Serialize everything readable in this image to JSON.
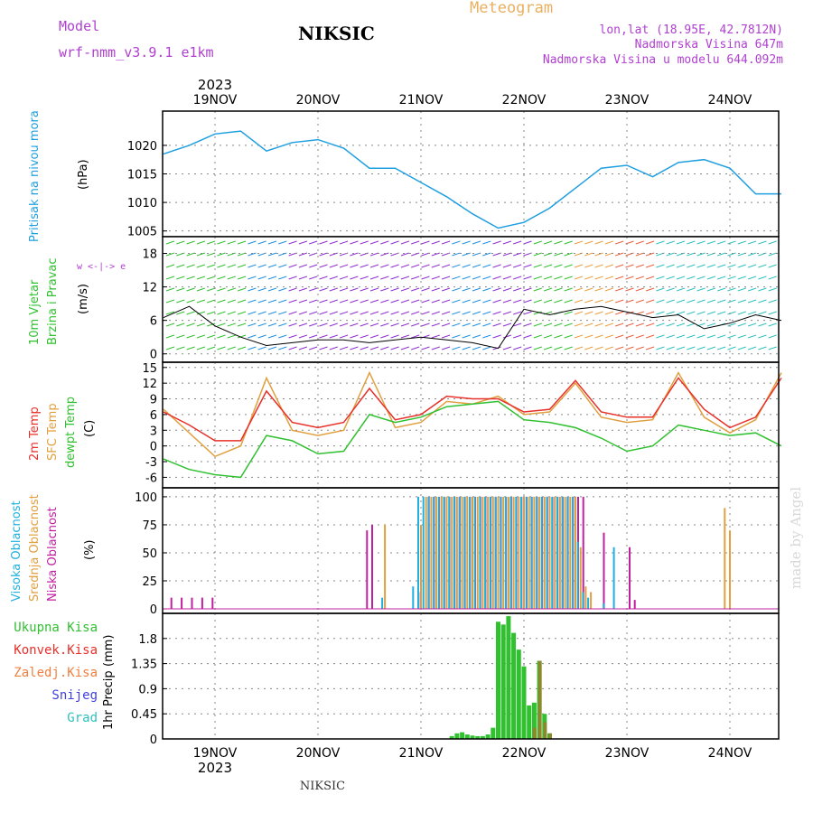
{
  "header": {
    "model_label": "Model",
    "model_value": "wrf-nmm_v3.9.1 e1km",
    "station": "NIKSIC",
    "product": "Meteogram",
    "lonlat": "lon,lat (18.95E, 42.7812N)",
    "elevation": "Nadmorska Visina 647m",
    "model_elevation": "Nadmorska Visina u modelu 644.092m",
    "year_top": "2023",
    "year_bottom": "2023",
    "footer_station": "NIKSIC",
    "watermark": "made by Angel"
  },
  "colors": {
    "pressure": "#1f9fe0",
    "temp2m": "#e8302a",
    "sfc_temp": "#e0a040",
    "dewpoint": "#30c030",
    "total_precip": "#30c030",
    "label_wind": "#30c030",
    "label_temp": "#e8302a",
    "label_cloud_high": "#20b0e0",
    "label_cloud_mid": "#e0a040",
    "label_cloud_low": "#c020a0",
    "label_precip_total": "#30c030",
    "label_precip_conv": "#e8302a",
    "label_precip_strat": "#f08040",
    "label_snow": "#4040e0",
    "label_grad": "#30c0c0",
    "header_purple": "#b040d0",
    "header_orange": "#e8b060"
  },
  "chart_data": [
    {
      "type": "line",
      "title": "",
      "ylabel": "Pritisak na nivou mora",
      "unit": "(hPa)",
      "ylim": [
        1004,
        1026
      ],
      "yticks": [
        1005,
        1010,
        1015,
        1020
      ],
      "xlabels": [
        "19NOV",
        "20NOV",
        "21NOV",
        "22NOV",
        "23NOV",
        "24NOV"
      ],
      "x_days": [
        -0.5,
        -0.25,
        0.0,
        0.25,
        0.5,
        0.75,
        1.0,
        1.25,
        1.5,
        1.75,
        2.0,
        2.25,
        2.5,
        2.75,
        3.0,
        3.25,
        3.5,
        3.75,
        4.0,
        4.25,
        4.5,
        4.75,
        5.0,
        5.25,
        5.5
      ],
      "series": [
        {
          "name": "Pritisak",
          "values": [
            1018.5,
            1020,
            1022,
            1022.5,
            1019,
            1020.5,
            1021,
            1019.5,
            1016,
            1016,
            1013.5,
            1011,
            1008,
            1005.5,
            1006.5,
            1009,
            1012.5,
            1016,
            1016.5,
            1014.5,
            1017,
            1017.5,
            1016,
            1011.5,
            1011.5
          ]
        }
      ]
    },
    {
      "type": "line",
      "title": "",
      "ylabel": "10m Vjetar Brzina i Pravac",
      "unit": "(m/s)",
      "ylim": [
        -1.5,
        21
      ],
      "yticks": [
        0,
        6,
        12,
        18
      ],
      "compass_label": "w <-|-> e",
      "x_days": [
        -0.5,
        -0.25,
        0.0,
        0.25,
        0.5,
        0.75,
        1.0,
        1.25,
        1.5,
        1.75,
        2.0,
        2.25,
        2.5,
        2.75,
        3.0,
        3.25,
        3.5,
        3.75,
        4.0,
        4.25,
        4.5,
        4.75,
        5.0,
        5.25,
        5.5
      ],
      "series": [
        {
          "name": "Brzina",
          "values": [
            6.5,
            8.5,
            5,
            3,
            1.5,
            2,
            2.5,
            2.5,
            2,
            2.5,
            3,
            2.5,
            2,
            1,
            8,
            7,
            8,
            8.5,
            7.5,
            6.5,
            7,
            4.5,
            5.5,
            7,
            6
          ]
        }
      ]
    },
    {
      "type": "line",
      "title": "",
      "ylabels": [
        "2m Temp",
        "SFC Temp",
        "dewpt Temp"
      ],
      "unit": "(C)",
      "ylim": [
        -8,
        16
      ],
      "yticks": [
        -6,
        -3,
        0,
        3,
        6,
        9,
        12,
        15
      ],
      "x_days": [
        -0.5,
        -0.25,
        0.0,
        0.25,
        0.5,
        0.75,
        1.0,
        1.25,
        1.5,
        1.75,
        2.0,
        2.25,
        2.5,
        2.75,
        3.0,
        3.25,
        3.5,
        3.75,
        4.0,
        4.25,
        4.5,
        4.75,
        5.0,
        5.25,
        5.5
      ],
      "series": [
        {
          "name": "2m Temp",
          "values": [
            6.5,
            4,
            1,
            1,
            10.5,
            4.5,
            3.5,
            4.5,
            11,
            5,
            6,
            9.5,
            9,
            9,
            6.5,
            7,
            12.5,
            6.5,
            5.5,
            5.5,
            13,
            7,
            3.5,
            5.5,
            13
          ]
        },
        {
          "name": "SFC Temp",
          "values": [
            7,
            2.5,
            -2,
            0,
            13,
            3,
            2,
            3,
            14,
            3.5,
            4.5,
            8.5,
            8,
            9.5,
            6,
            6.5,
            12,
            5.5,
            4.5,
            5,
            14,
            5.5,
            2.5,
            5,
            14
          ]
        },
        {
          "name": "dewpt Temp",
          "values": [
            -2.5,
            -4.5,
            -5.5,
            -6,
            2,
            1,
            -1.5,
            -1,
            6,
            4.5,
            5.5,
            7.5,
            8,
            8.5,
            5,
            4.5,
            3.5,
            1.5,
            -1,
            0,
            4,
            3,
            2,
            2.5,
            0
          ]
        }
      ]
    },
    {
      "type": "bar",
      "title": "",
      "ylabels": [
        "Visoka Oblacnost",
        "Srednja Oblacnost",
        "Niska Oblacnost"
      ],
      "unit": "(%)",
      "ylim": [
        -4,
        108
      ],
      "yticks": [
        0,
        25,
        50,
        75,
        100
      ],
      "x_days": [
        -0.45,
        -0.35,
        -0.25,
        -0.15,
        -0.05,
        1.45,
        1.5,
        1.55,
        1.65,
        1.95,
        2.0,
        2.05,
        2.1,
        2.15,
        2.2,
        2.25,
        2.3,
        2.35,
        2.4,
        2.45,
        2.5,
        2.55,
        2.6,
        2.65,
        2.7,
        2.75,
        2.8,
        2.85,
        2.9,
        2.95,
        3.0,
        3.05,
        3.1,
        3.15,
        3.2,
        3.25,
        3.3,
        3.35,
        3.4,
        3.45,
        3.5,
        3.55,
        3.6,
        3.65,
        3.7,
        3.75,
        3.8,
        3.9,
        4.0,
        4.05,
        4.95,
        5.0
      ],
      "series": [
        {
          "name": "Visoka Oblacnost",
          "values": [
            0,
            0,
            0,
            0,
            0,
            0,
            0,
            0,
            10,
            20,
            100,
            100,
            100,
            100,
            100,
            100,
            100,
            100,
            100,
            100,
            100,
            100,
            100,
            100,
            100,
            100,
            100,
            100,
            100,
            100,
            100,
            100,
            100,
            100,
            100,
            100,
            100,
            100,
            100,
            100,
            100,
            60,
            15,
            10,
            0,
            0,
            5,
            55,
            0,
            0,
            0,
            0
          ]
        },
        {
          "name": "Srednja Oblacnost",
          "values": [
            0,
            0,
            0,
            0,
            0,
            0,
            0,
            0,
            75,
            0,
            75,
            100,
            100,
            100,
            100,
            100,
            100,
            100,
            100,
            100,
            100,
            100,
            100,
            100,
            100,
            100,
            100,
            100,
            100,
            100,
            100,
            100,
            100,
            100,
            100,
            100,
            100,
            100,
            100,
            100,
            100,
            55,
            20,
            15,
            0,
            0,
            0,
            0,
            0,
            0,
            90,
            70
          ]
        },
        {
          "name": "Niska Oblacnost",
          "values": [
            10,
            10,
            10,
            10,
            10,
            70,
            75,
            0,
            0,
            15,
            0,
            100,
            100,
            100,
            100,
            100,
            100,
            100,
            100,
            100,
            100,
            100,
            100,
            100,
            100,
            100,
            100,
            100,
            100,
            100,
            100,
            100,
            100,
            100,
            100,
            100,
            100,
            100,
            100,
            100,
            100,
            100,
            0,
            0,
            0,
            68,
            0,
            0,
            55,
            8,
            0,
            0
          ]
        }
      ]
    },
    {
      "type": "bar",
      "title": "",
      "ylabel": "1hr Precip",
      "unit": "(mm)",
      "legend": [
        "Ukupna Kisa",
        "Konvek.Kisa",
        "Zaledj.Kisa",
        "Snijeg",
        "Grad"
      ],
      "ylim": [
        0,
        2.25
      ],
      "yticks": [
        0,
        0.45,
        0.9,
        1.35,
        1.8
      ],
      "x_days": [
        2.3,
        2.35,
        2.4,
        2.45,
        2.5,
        2.55,
        2.6,
        2.65,
        2.7,
        2.75,
        2.8,
        2.85,
        2.9,
        2.95,
        3.0,
        3.05,
        3.1,
        3.15,
        3.2,
        3.25
      ],
      "series": [
        {
          "name": "Ukupna Kisa",
          "values": [
            0.05,
            0.1,
            0.12,
            0.08,
            0.06,
            0.05,
            0.05,
            0.08,
            0.2,
            2.1,
            2.05,
            2.2,
            1.9,
            1.6,
            1.3,
            0.6,
            0.65,
            1.4,
            0.45,
            0.1
          ]
        },
        {
          "name": "Zaledj.Kisa",
          "values": [
            0,
            0,
            0,
            0,
            0,
            0,
            0,
            0,
            0,
            0,
            0,
            0,
            0,
            0,
            0,
            0,
            0.2,
            1.4,
            0.3,
            0.1
          ]
        }
      ]
    }
  ]
}
